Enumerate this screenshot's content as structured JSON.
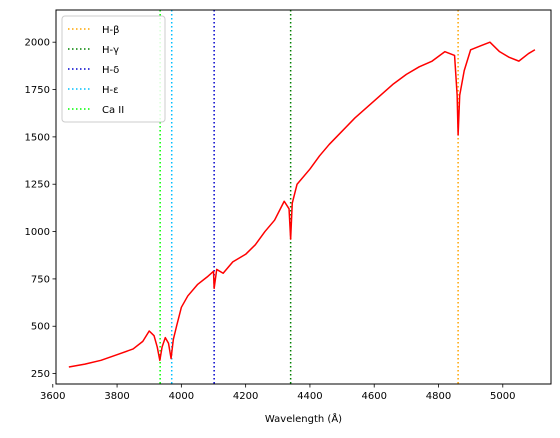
{
  "chart_data": {
    "type": "line",
    "title": "",
    "xlabel": "Wavelength (Å)",
    "ylabel": "",
    "xlim": [
      3610,
      5150
    ],
    "ylim": [
      195,
      2170
    ],
    "grid": false,
    "legend_placement": "top-left",
    "x_ticks": [
      3600,
      3800,
      4000,
      4200,
      4400,
      4600,
      4800,
      5000
    ],
    "y_ticks": [
      250,
      500,
      750,
      1000,
      1250,
      1500,
      1750,
      2000
    ],
    "series": [
      {
        "color": "#ff0000",
        "x": [
          3650,
          3700,
          3750,
          3800,
          3850,
          3880,
          3900,
          3915,
          3925,
          3933,
          3940,
          3950,
          3960,
          3968,
          3975,
          3985,
          4000,
          4020,
          4050,
          4080,
          4100,
          4102,
          4110,
          4130,
          4160,
          4200,
          4230,
          4260,
          4290,
          4320,
          4335,
          4340,
          4345,
          4360,
          4400,
          4430,
          4460,
          4500,
          4540,
          4580,
          4620,
          4660,
          4700,
          4740,
          4780,
          4820,
          4850,
          4858,
          4861,
          4866,
          4880,
          4900,
          4930,
          4960,
          4990,
          5020,
          5050,
          5080,
          5100
        ],
        "y": [
          285,
          300,
          320,
          350,
          380,
          420,
          475,
          450,
          390,
          320,
          390,
          440,
          410,
          330,
          430,
          500,
          600,
          660,
          720,
          760,
          790,
          700,
          800,
          780,
          840,
          880,
          930,
          1000,
          1060,
          1160,
          1120,
          960,
          1150,
          1250,
          1330,
          1400,
          1460,
          1530,
          1600,
          1660,
          1720,
          1780,
          1830,
          1870,
          1900,
          1950,
          1930,
          1720,
          1510,
          1720,
          1850,
          1960,
          1980,
          2000,
          1950,
          1920,
          1900,
          1940,
          1960
        ]
      }
    ],
    "lines": [
      {
        "name": "H-β",
        "x": 4861,
        "color": "#ffa500",
        "style": "dotted"
      },
      {
        "name": "H-γ",
        "x": 4340,
        "color": "#008000",
        "style": "dotted"
      },
      {
        "name": "H-δ",
        "x": 4102,
        "color": "#0000cd",
        "style": "dotted"
      },
      {
        "name": "H-ε",
        "x": 3970,
        "color": "#00bfff",
        "style": "dotted"
      },
      {
        "name": "Ca II",
        "x": 3934,
        "color": "#00ff00",
        "style": "dotted"
      }
    ]
  }
}
